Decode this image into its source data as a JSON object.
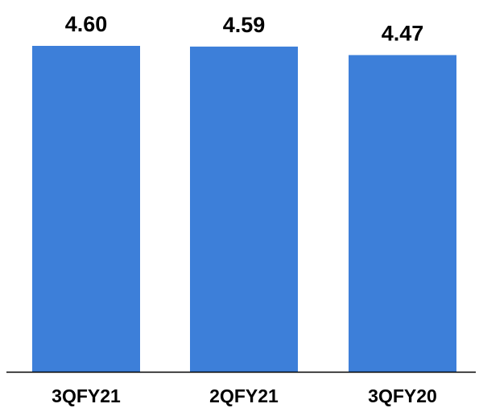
{
  "chart_data": {
    "type": "bar",
    "categories": [
      "3QFY21",
      "2QFY21",
      "3QFY20"
    ],
    "values": [
      4.6,
      4.59,
      4.47
    ],
    "data_labels": [
      "4.60",
      "4.59",
      "4.47"
    ],
    "title": "",
    "xlabel": "",
    "ylabel": "",
    "ylim": [
      0,
      4.6
    ],
    "grid": false,
    "legend": "none",
    "colors": {
      "bar": "#3d7fd9",
      "axis": "#000000",
      "text": "#000000"
    }
  }
}
